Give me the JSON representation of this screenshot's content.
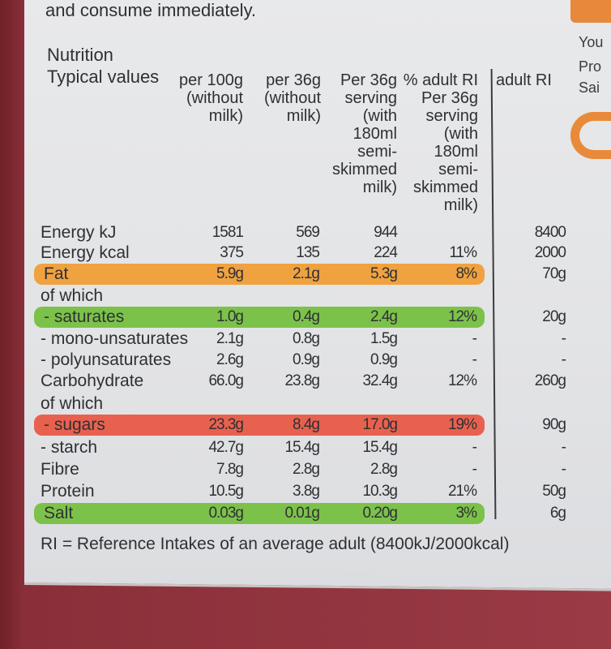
{
  "intro_text": "and consume immediately.",
  "section_title": "Nutrition",
  "typical_label": "Typical values",
  "columns": [
    "per 100g\n(without\nmilk)",
    "per 36g\n(without\nmilk)",
    "Per 36g\nserving\n(with\n180ml\nsemi-\nskimmed\nmilk)",
    "% adult RI\nPer 36g\nserving\n(with\n180ml\nsemi-\nskimmed\nmilk)",
    "adult RI"
  ],
  "rows": [
    {
      "label": "Energy kJ",
      "v": [
        "1581",
        "569",
        "944",
        "",
        "8400"
      ]
    },
    {
      "label": "Energy kcal",
      "v": [
        "375",
        "135",
        "224",
        "11%",
        "2000"
      ]
    },
    {
      "label": "Fat",
      "v": [
        "5.9g",
        "2.1g",
        "5.3g",
        "8%",
        "70g"
      ],
      "highlight": "orange"
    },
    {
      "label": "of which",
      "v": [
        "",
        "",
        "",
        "",
        ""
      ]
    },
    {
      "label": "- saturates",
      "v": [
        "1.0g",
        "0.4g",
        "2.4g",
        "12%",
        "20g"
      ],
      "highlight": "green"
    },
    {
      "label": "- mono-unsaturates",
      "v": [
        "2.1g",
        "0.8g",
        "1.5g",
        "-",
        "-"
      ]
    },
    {
      "label": "- polyunsaturates",
      "v": [
        "2.6g",
        "0.9g",
        "0.9g",
        "-",
        "-"
      ]
    },
    {
      "label": "Carbohydrate",
      "v": [
        "66.0g",
        "23.8g",
        "32.4g",
        "12%",
        "260g"
      ]
    },
    {
      "label": "of which",
      "v": [
        "",
        "",
        "",
        "",
        ""
      ]
    },
    {
      "label": "- sugars",
      "v": [
        "23.3g",
        "8.4g",
        "17.0g",
        "19%",
        "90g"
      ],
      "highlight": "red"
    },
    {
      "label": "- starch",
      "v": [
        "42.7g",
        "15.4g",
        "15.4g",
        "-",
        "-"
      ]
    },
    {
      "label": "Fibre",
      "v": [
        "7.8g",
        "2.8g",
        "2.8g",
        "-",
        "-"
      ]
    },
    {
      "label": "Protein",
      "v": [
        "10.5g",
        "3.8g",
        "10.3g",
        "21%",
        "50g"
      ]
    },
    {
      "label": "Salt",
      "v": [
        "0.03g",
        "0.01g",
        "0.20g",
        "3%",
        "6g"
      ],
      "highlight": "green"
    }
  ],
  "footnote": "RI = Reference Intakes of an average adult (8400kJ/2000kcal)",
  "side_text": [
    "You",
    "Pro",
    "Sai"
  ],
  "colors": {
    "fat": "#f0a240",
    "saturates": "#7cc24a",
    "sugars": "#e8614f",
    "salt": "#7cc24a"
  }
}
